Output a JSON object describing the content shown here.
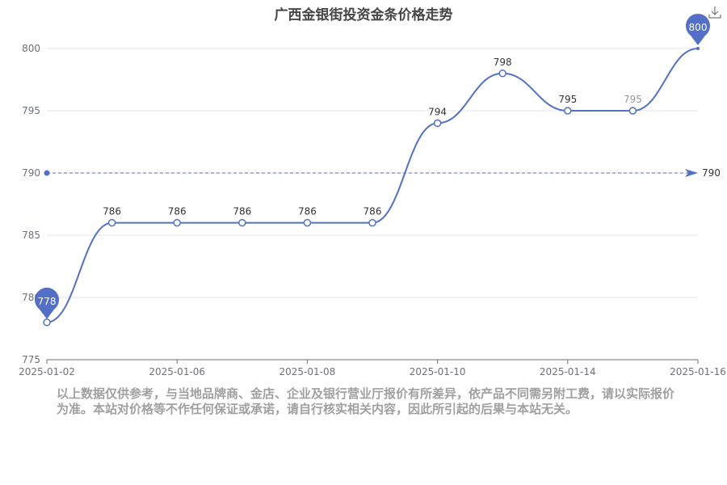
{
  "chart_data": {
    "type": "line",
    "title": "广西金银街投资金条价格走势",
    "categories": [
      "2025-01-02",
      "",
      "2025-01-06",
      "",
      "2025-01-08",
      "",
      "2025-01-10",
      "",
      "2025-01-14",
      "",
      "2025-01-16"
    ],
    "values": [
      778,
      786,
      786,
      786,
      786,
      786,
      794,
      798,
      795,
      795,
      800
    ],
    "ylim": [
      775,
      800
    ],
    "yticks": [
      775,
      780,
      785,
      790,
      795,
      800
    ],
    "grid": true,
    "smooth": true,
    "markPoints": {
      "max": 800,
      "min": 778
    },
    "markLine": {
      "average": 790
    },
    "color": "#5470c6"
  },
  "note": "以上数据仅供参考，与当地品牌商、金店、企业及银行营业厅报价有所差异，依产品不同需另附工费，请以实际报价为准。本站对价格等不作任何保证或承诺，请自行核实相关内容，因此所引起的后果与本站无关。",
  "toolbox": {
    "download_icon": "download-icon"
  }
}
